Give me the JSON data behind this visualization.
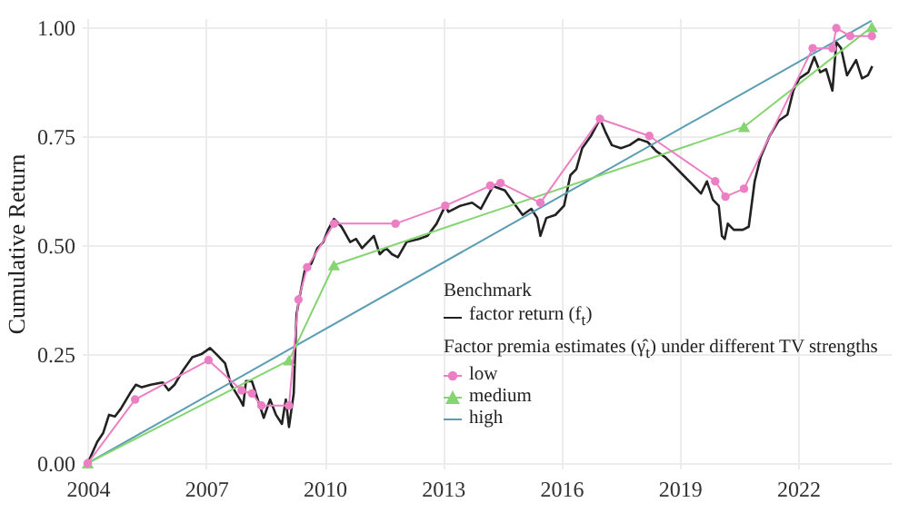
{
  "chart_data": {
    "type": "line",
    "ylabel": "Cumulative Return",
    "legend_title": "Benchmark",
    "legend": "bottom right",
    "grid": true,
    "line_style": "solid",
    "annotations": [
      "Factor premia estimates (γ̂$_{t}$) under different TV strengths"
    ],
    "xlim": [
      2003.85,
      2024.35
    ],
    "xticks": [
      2004,
      2007,
      2010,
      2013,
      2016,
      2019,
      2022
    ],
    "ylim": [
      -0.012,
      1.02
    ],
    "yticks": [
      {
        "value": 0,
        "label": "0.00"
      },
      {
        "value": 0.25,
        "label": "0.25"
      },
      {
        "value": 0.5,
        "label": "0.50"
      },
      {
        "value": 0.75,
        "label": "0.75"
      },
      {
        "value": 1,
        "label": "1.00"
      }
    ],
    "series": [
      {
        "name": "factor return (f$_{t}$)",
        "color": "#222222",
        "marker": "none",
        "x": [
          2004,
          2004.24,
          2004.39,
          2004.54,
          2004.69,
          2004.84,
          2005.07,
          2005.22,
          2005.37,
          2005.6,
          2005.9,
          2006.05,
          2006.2,
          2006.43,
          2006.65,
          2006.88,
          2007.1,
          2007.26,
          2007.48,
          2007.63,
          2007.86,
          2007.94,
          2008.01,
          2008.16,
          2008.31,
          2008.46,
          2008.62,
          2008.77,
          2008.92,
          2009.02,
          2009.1,
          2009.22,
          2009.29,
          2009.37,
          2009.52,
          2009.6,
          2009.67,
          2009.82,
          2009.97,
          2010.09,
          2010.24,
          2010.43,
          2010.65,
          2010.8,
          2010.95,
          2011.1,
          2011.25,
          2011.4,
          2011.56,
          2011.71,
          2011.86,
          2012.08,
          2012.39,
          2012.61,
          2012.84,
          2013.06,
          2013.14,
          2013.44,
          2013.74,
          2013.96,
          2014.27,
          2014.57,
          2014.79,
          2015.02,
          2015.24,
          2015.39,
          2015.47,
          2015.62,
          2015.85,
          2016.07,
          2016.23,
          2016.38,
          2016.53,
          2016.75,
          2016.98,
          2017.13,
          2017.28,
          2017.51,
          2017.73,
          2017.96,
          2018.19,
          2018.41,
          2018.64,
          2018.86,
          2019.09,
          2019.32,
          2019.54,
          2019.69,
          2019.84,
          2019.99,
          2020.07,
          2020.14,
          2020.22,
          2020.37,
          2020.6,
          2020.75,
          2020.9,
          2021.05,
          2021.28,
          2021.51,
          2021.73,
          2021.88,
          2022.03,
          2022.26,
          2022.41,
          2022.56,
          2022.71,
          2022.87,
          2022.97,
          2023.09,
          2023.24,
          2023.47,
          2023.62,
          2023.77,
          2023.88
        ],
        "values": [
          0,
          0.049,
          0.069,
          0.111,
          0.107,
          0.125,
          0.16,
          0.18,
          0.174,
          0.18,
          0.185,
          0.167,
          0.18,
          0.215,
          0.243,
          0.25,
          0.264,
          0.25,
          0.229,
          0.18,
          0.146,
          0.132,
          0.188,
          0.188,
          0.146,
          0.104,
          0.146,
          0.111,
          0.09,
          0.146,
          0.083,
          0.16,
          0.34,
          0.382,
          0.451,
          0.451,
          0.458,
          0.493,
          0.507,
          0.535,
          0.56,
          0.542,
          0.507,
          0.514,
          0.493,
          0.507,
          0.521,
          0.479,
          0.493,
          0.479,
          0.472,
          0.507,
          0.514,
          0.521,
          0.549,
          0.59,
          0.576,
          0.59,
          0.597,
          0.583,
          0.635,
          0.625,
          0.597,
          0.569,
          0.583,
          0.562,
          0.521,
          0.562,
          0.569,
          0.59,
          0.66,
          0.674,
          0.722,
          0.75,
          0.789,
          0.757,
          0.729,
          0.722,
          0.729,
          0.743,
          0.736,
          0.715,
          0.701,
          0.681,
          0.66,
          0.639,
          0.618,
          0.646,
          0.604,
          0.59,
          0.521,
          0.514,
          0.549,
          0.535,
          0.535,
          0.542,
          0.646,
          0.701,
          0.75,
          0.785,
          0.799,
          0.854,
          0.882,
          0.896,
          0.931,
          0.896,
          0.903,
          0.854,
          0.965,
          0.951,
          0.889,
          0.924,
          0.882,
          0.889,
          0.91
        ]
      },
      {
        "name": "high",
        "color": "#5b9db3",
        "marker": "none",
        "x": [
          2004,
          2023.86
        ],
        "values": [
          0,
          1.014
        ]
      },
      {
        "name": "medium",
        "color": "#86d472",
        "marker": "triangle",
        "x": [
          2004,
          2009.1,
          2010.24,
          2020.63,
          2023.87
        ],
        "values": [
          0,
          0.236,
          0.454,
          0.771,
          1.0
        ]
      },
      {
        "name": "low",
        "color": "#ec7fc4",
        "marker": "circle",
        "x": [
          2004,
          2005.2,
          2007.06,
          2007.9,
          2008.16,
          2008.4,
          2009.1,
          2009.34,
          2009.56,
          2010.24,
          2011.8,
          2013.06,
          2014.2,
          2014.46,
          2015.47,
          2016.98,
          2018.23,
          2019.9,
          2020.16,
          2020.63,
          2022.37,
          2022.87,
          2022.97,
          2023.32,
          2023.87
        ],
        "values": [
          0,
          0.146,
          0.236,
          0.167,
          0.16,
          0.132,
          0.132,
          0.375,
          0.449,
          0.549,
          0.549,
          0.59,
          0.636,
          0.642,
          0.597,
          0.789,
          0.75,
          0.646,
          0.611,
          0.629,
          0.951,
          0.951,
          0.997,
          0.979,
          0.979
        ]
      }
    ]
  }
}
